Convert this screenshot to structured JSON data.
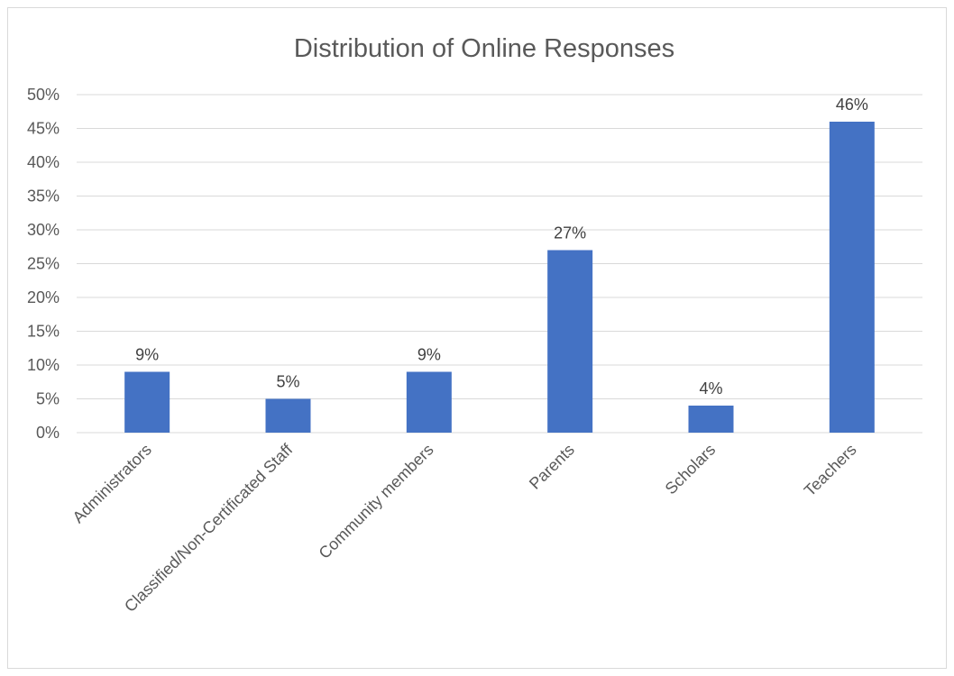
{
  "chart_data": {
    "type": "bar",
    "title": "Distribution of Online Responses",
    "categories": [
      "Administrators",
      "Classified/Non-Certificated Staff",
      "Community members",
      "Parents",
      "Scholars",
      "Teachers"
    ],
    "values": [
      9,
      5,
      9,
      27,
      4,
      46
    ],
    "data_labels": [
      "9%",
      "5%",
      "9%",
      "27%",
      "4%",
      "46%"
    ],
    "ylim": [
      0,
      50
    ],
    "y_ticks": [
      "0%",
      "5%",
      "10%",
      "15%",
      "20%",
      "25%",
      "30%",
      "35%",
      "40%",
      "45%",
      "50%"
    ],
    "xlabel": "",
    "ylabel": "",
    "grid": true,
    "bar_color": "#4472c4"
  }
}
